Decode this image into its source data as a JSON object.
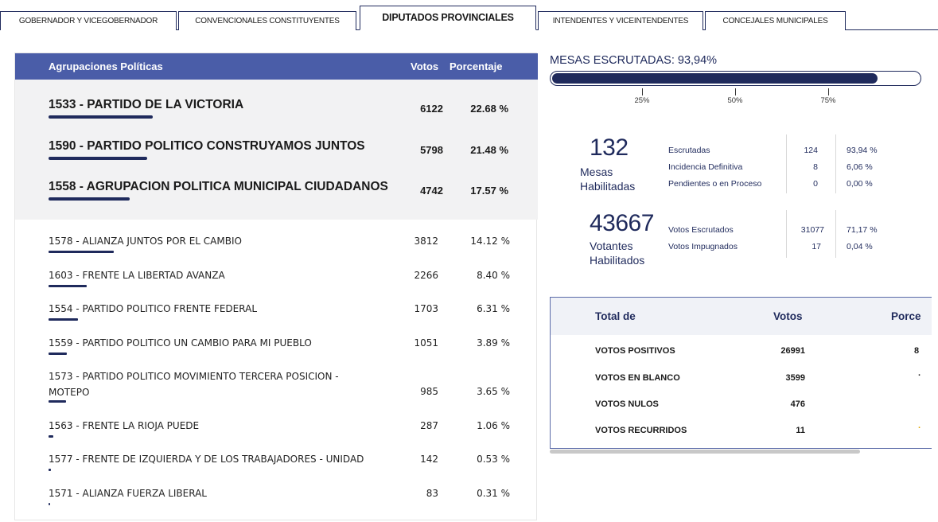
{
  "tabs": [
    {
      "label": "GOBERNADOR Y VICEGOBERNADOR"
    },
    {
      "label": "CONVENCIONALES CONSTITUYENTES"
    },
    {
      "label": "DIPUTADOS PROVINCIALES"
    },
    {
      "label": "INTENDENTES Y VICEINTENDENTES"
    },
    {
      "label": "CONCEJALES MUNICIPALES"
    }
  ],
  "table": {
    "headers": {
      "name": "Agrupaciones Políticas",
      "votes": "Votos",
      "pct": "Porcentaje"
    },
    "top": [
      {
        "name": "1533 - PARTIDO DE LA VICTORIA",
        "votes": "6122",
        "pct": "22.68 %",
        "share": 0.2268
      },
      {
        "name": "1590 - PARTIDO POLITICO CONSTRUYAMOS JUNTOS",
        "votes": "5798",
        "pct": "21.48 %",
        "share": 0.2148
      },
      {
        "name": "1558 - AGRUPACION POLITICA MUNICIPAL CIUDADANOS",
        "votes": "4742",
        "pct": "17.57 %",
        "share": 0.1757
      }
    ],
    "rows": [
      {
        "name": "1578 - ALIANZA JUNTOS POR EL CAMBIO",
        "votes": "3812",
        "pct": "14.12 %",
        "share": 0.1412
      },
      {
        "name": "1603 - FRENTE LA LIBERTAD AVANZA",
        "votes": "2266",
        "pct": "8.40 %",
        "share": 0.084
      },
      {
        "name": "1554 - PARTIDO POLITICO FRENTE FEDERAL",
        "votes": "1703",
        "pct": "6.31 %",
        "share": 0.0631
      },
      {
        "name": "1559 - PARTIDO POLITICO UN CAMBIO PARA MI PUEBLO",
        "votes": "1051",
        "pct": "3.89 %",
        "share": 0.0389
      },
      {
        "name_line1": "1573 - PARTIDO POLITICO MOVIMIENTO TERCERA POSICION -",
        "name_line2": "MOTEPO",
        "votes": "985",
        "pct": "3.65 %",
        "share": 0.0365
      },
      {
        "name": "1563 - FRENTE LA RIOJA PUEDE",
        "votes": "287",
        "pct": "1.06 %",
        "share": 0.0106
      },
      {
        "name": "1577 - FRENTE DE IZQUIERDA Y DE LOS TRABAJADORES - UNIDAD",
        "votes": "142",
        "pct": "0.53 %",
        "share": 0.0053
      },
      {
        "name": "1571 - ALIANZA FUERZA LIBERAL",
        "votes": "83",
        "pct": "0.31 %",
        "share": 0.0031
      }
    ]
  },
  "mesas": {
    "title": "MESAS ESCRUTADAS: 93,94%",
    "progress": 0.9394,
    "ticks": [
      "25%",
      "50%",
      "75%"
    ]
  },
  "stats1": {
    "big": "132",
    "sub1": "Mesas",
    "sub2": "Habilitadas",
    "rows": [
      {
        "label": "Escrutadas",
        "num": "124",
        "pct": "93,94 %"
      },
      {
        "label": "Incidencia Definitiva",
        "num": "8",
        "pct": "6,06 %"
      },
      {
        "label": "Pendientes o en Proceso",
        "num": "0",
        "pct": "0,00 %"
      }
    ]
  },
  "stats2": {
    "big": "43667",
    "sub1": "Votantes",
    "sub2": "Habilitados",
    "rows": [
      {
        "label": "Votos Escrutados",
        "num": "31077",
        "pct": "71,17 %"
      },
      {
        "label": "Votos Impugnados",
        "num": "17",
        "pct": "0,04 %"
      }
    ]
  },
  "totals": {
    "headers": {
      "label": "Total de",
      "votes": "Votos",
      "pct": "Porce"
    },
    "rows": [
      {
        "label": "VOTOS POSITIVOS",
        "votes": "26991",
        "pct": "8"
      },
      {
        "label": "VOTOS EN BLANCO",
        "votes": "3599",
        "pct": "·"
      },
      {
        "label": "VOTOS NULOS",
        "votes": "476",
        "pct": ""
      },
      {
        "label": "VOTOS RECURRIDOS",
        "votes": "11",
        "pct": "·"
      }
    ]
  },
  "colors": {
    "primary": "#1f2a5c",
    "header_bg": "#4a5da8",
    "accent_dot": "#e0a800"
  }
}
